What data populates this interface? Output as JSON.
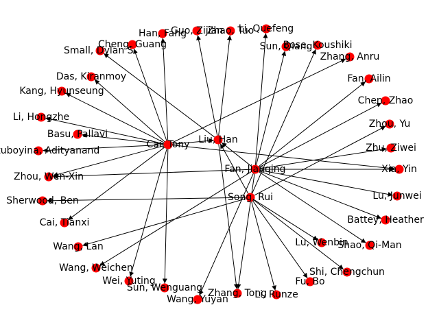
{
  "graph": {
    "node_color": "#ff0000",
    "edge_color": "#000000",
    "directed": true,
    "nodes": [
      {
        "id": "cai_tony",
        "label": "Cai, Tony"
      },
      {
        "id": "fan_jianqing",
        "label": "Fan, Jianqing"
      },
      {
        "id": "song_rui",
        "label": "Song, Rui"
      },
      {
        "id": "liu_han",
        "label": "Liu, Han"
      },
      {
        "id": "han_fang",
        "label": "Han, Fang"
      },
      {
        "id": "guo_zijian",
        "label": "Guo, Zijian"
      },
      {
        "id": "zhao_tuo",
        "label": "Zhao, Tuo"
      },
      {
        "id": "li_quefeng",
        "label": "Li, Quefeng"
      },
      {
        "id": "sun_qiang",
        "label": "Sun, Qiang"
      },
      {
        "id": "bose_koushiki",
        "label": "Bose, Koushiki"
      },
      {
        "id": "cheng_guang",
        "label": "Cheng, Guang"
      },
      {
        "id": "small_dylan",
        "label": "Small, Dylan S."
      },
      {
        "id": "zhang_anru",
        "label": "Zhang, Anru"
      },
      {
        "id": "das_kiranmoy",
        "label": "Das, Kiranmoy"
      },
      {
        "id": "fan_ailin",
        "label": "Fan, Ailin"
      },
      {
        "id": "kang_hyunseung",
        "label": "Kang, Hyunseung"
      },
      {
        "id": "chen_zhao",
        "label": "Chen, Zhao"
      },
      {
        "id": "li_hongzhe",
        "label": "Li, Hongzhe"
      },
      {
        "id": "zhou_yu",
        "label": "Zhou, Yu"
      },
      {
        "id": "basu_pallavi",
        "label": "Basu, Pallavi"
      },
      {
        "id": "boyina_adityanand",
        "label": "Guntuboyina, Adityanand"
      },
      {
        "id": "zhu_ziwei",
        "label": "Zhu, Ziwei"
      },
      {
        "id": "xia_yin",
        "label": "Xia, Yin"
      },
      {
        "id": "zhou_wenxin",
        "label": "Zhou, Wen-Xin"
      },
      {
        "id": "lu_junwei",
        "label": "Lu, Junwei"
      },
      {
        "id": "sherwood_ben",
        "label": "Sherwood, Ben"
      },
      {
        "id": "cai_tianxi",
        "label": "Cai, Tianxi"
      },
      {
        "id": "battey_heather",
        "label": "Battey, Heather"
      },
      {
        "id": "wang_lan",
        "label": "Wang, Lan"
      },
      {
        "id": "lu_wenbin",
        "label": "Lu, Wenbin"
      },
      {
        "id": "shao_qiman",
        "label": "Shao, Qi-Man"
      },
      {
        "id": "wang_weichen",
        "label": "Wang, Weichen"
      },
      {
        "id": "shi_chengchun",
        "label": "Shi, Chengchun"
      },
      {
        "id": "wei_yuting",
        "label": "Wei, Yuting"
      },
      {
        "id": "fu_bo",
        "label": "Fu, Bo"
      },
      {
        "id": "sun_wenguang",
        "label": "Sun, Wenguang"
      },
      {
        "id": "zhang_tong",
        "label": "Zhang, Tong"
      },
      {
        "id": "li_runze",
        "label": "Li, Runze"
      },
      {
        "id": "wang_yuyan",
        "label": "Wang, Yuyan"
      }
    ],
    "edges": [
      [
        "cai_tony",
        "han_fang"
      ],
      [
        "cai_tony",
        "cheng_guang"
      ],
      [
        "cai_tony",
        "das_kiranmoy"
      ],
      [
        "cai_tony",
        "kang_hyunseung"
      ],
      [
        "cai_tony",
        "li_hongzhe"
      ],
      [
        "cai_tony",
        "basu_pallavi"
      ],
      [
        "cai_tony",
        "boyina_adityanand"
      ],
      [
        "cai_tony",
        "zhou_wenxin"
      ],
      [
        "cai_tony",
        "cai_tianxi"
      ],
      [
        "cai_tony",
        "wei_yuting"
      ],
      [
        "cai_tony",
        "sun_wenguang"
      ],
      [
        "cai_tony",
        "zhang_anru"
      ],
      [
        "cai_tony",
        "xia_yin"
      ],
      [
        "cai_tony",
        "liu_han"
      ],
      [
        "fan_jianqing",
        "li_quefeng"
      ],
      [
        "fan_jianqing",
        "sun_qiang"
      ],
      [
        "fan_jianqing",
        "fan_ailin"
      ],
      [
        "fan_jianqing",
        "chen_zhao"
      ],
      [
        "fan_jianqing",
        "zhu_ziwei"
      ],
      [
        "fan_jianqing",
        "xia_yin"
      ],
      [
        "fan_jianqing",
        "lu_junwei"
      ],
      [
        "fan_jianqing",
        "battey_heather"
      ],
      [
        "fan_jianqing",
        "shao_qiman"
      ],
      [
        "fan_jianqing",
        "liu_han"
      ],
      [
        "fan_jianqing",
        "zhou_wenxin"
      ],
      [
        "fan_jianqing",
        "wang_weichen"
      ],
      [
        "fan_jianqing",
        "zhang_tong"
      ],
      [
        "fan_jianqing",
        "wang_yuyan"
      ],
      [
        "song_rui",
        "bose_koushiki"
      ],
      [
        "song_rui",
        "zhou_yu"
      ],
      [
        "song_rui",
        "sherwood_ben"
      ],
      [
        "song_rui",
        "wang_lan"
      ],
      [
        "song_rui",
        "lu_wenbin"
      ],
      [
        "song_rui",
        "shi_chengchun"
      ],
      [
        "song_rui",
        "fu_bo"
      ],
      [
        "song_rui",
        "li_runze"
      ],
      [
        "song_rui",
        "liu_han"
      ],
      [
        "liu_han",
        "guo_zijian"
      ],
      [
        "liu_han",
        "zhao_tuo"
      ],
      [
        "liu_han",
        "zhang_tong"
      ],
      [
        "liu_han",
        "small_dylan"
      ]
    ]
  }
}
